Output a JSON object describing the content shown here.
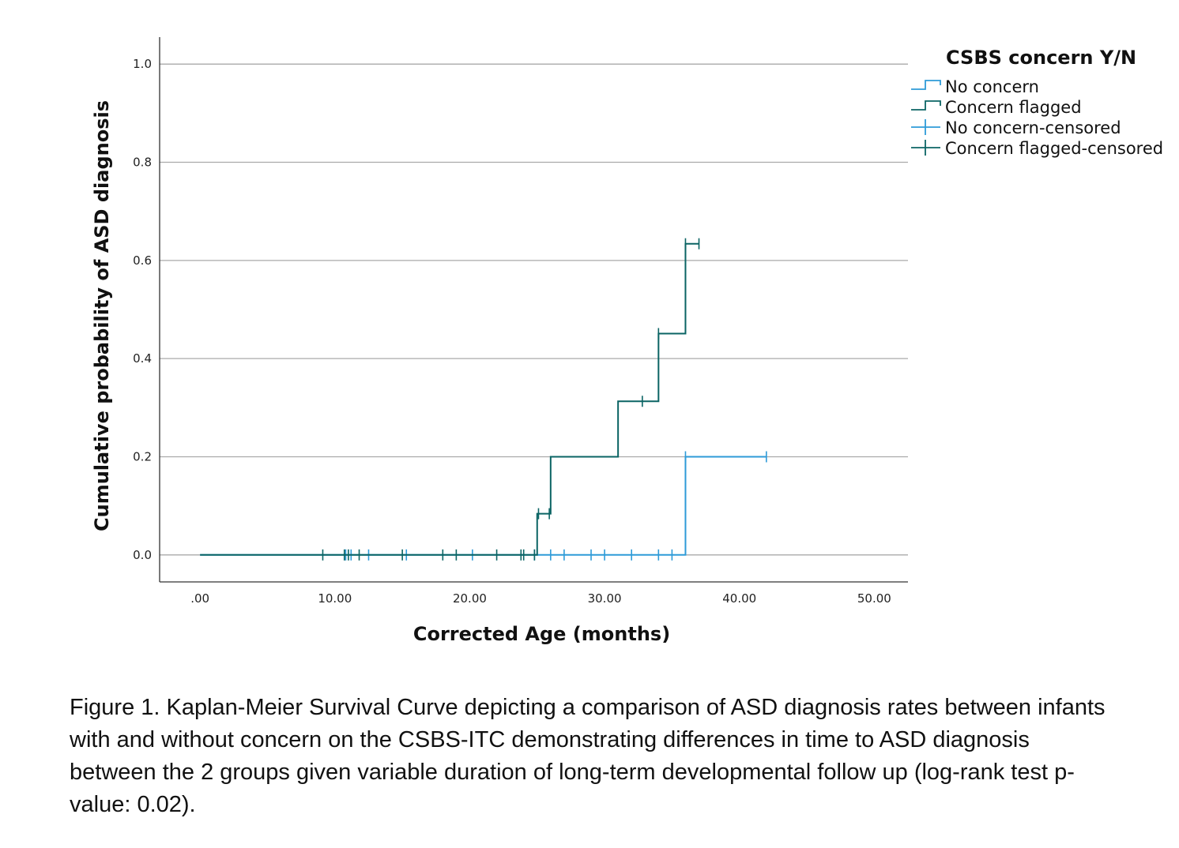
{
  "colors": {
    "no_concern": "#2E9BD8",
    "concern_flagged": "#0B6464",
    "grid": "#AAAAAA",
    "axis": "#333333"
  },
  "chart_data": {
    "type": "line",
    "subtype": "kaplan-meier-step",
    "xlabel": "Corrected Age (months)",
    "ylabel": "Cumulative probability of ASD diagnosis",
    "xlim": [
      -3,
      52.5
    ],
    "ylim": [
      -0.055,
      1.055
    ],
    "xticks": [
      0,
      10,
      20,
      30,
      40,
      50
    ],
    "xtick_labels": [
      ".00",
      "10.00",
      "20.00",
      "30.00",
      "40.00",
      "50.00"
    ],
    "yticks": [
      0,
      0.2,
      0.4,
      0.6,
      0.8,
      1.0
    ],
    "ytick_labels": [
      "0.0",
      "0.2",
      "0.4",
      "0.6",
      "0.8",
      "1.0"
    ],
    "grid": "horizontal",
    "legend": {
      "title": "CSBS concern Y/N",
      "position": "top-right outside",
      "entries": [
        "No concern",
        "Concern flagged",
        "No concern-censored",
        "Concern flagged-censored"
      ]
    },
    "series": [
      {
        "name": "No concern",
        "color_key": "no_concern",
        "steps": [
          [
            0,
            0
          ],
          [
            36,
            0
          ],
          [
            36,
            0.2
          ],
          [
            42,
            0.2
          ]
        ],
        "censored": [
          [
            10.8,
            0
          ],
          [
            11.2,
            0
          ],
          [
            12.5,
            0
          ],
          [
            15.3,
            0
          ],
          [
            20.2,
            0
          ],
          [
            24.8,
            0
          ],
          [
            26,
            0
          ],
          [
            27,
            0
          ],
          [
            29,
            0
          ],
          [
            30,
            0
          ],
          [
            32,
            0
          ],
          [
            34,
            0
          ],
          [
            35,
            0
          ],
          [
            36,
            0.2
          ],
          [
            42,
            0.2
          ]
        ]
      },
      {
        "name": "Concern flagged",
        "color_key": "concern_flagged",
        "steps": [
          [
            0,
            0
          ],
          [
            25,
            0
          ],
          [
            25,
            0.084
          ],
          [
            26,
            0.084
          ],
          [
            26,
            0.2
          ],
          [
            31,
            0.2
          ],
          [
            31,
            0.313
          ],
          [
            34,
            0.313
          ],
          [
            34,
            0.451
          ],
          [
            36,
            0.451
          ],
          [
            36,
            0.634
          ],
          [
            37,
            0.634
          ]
        ],
        "censored": [
          [
            9.1,
            0
          ],
          [
            10.7,
            0
          ],
          [
            11.0,
            0
          ],
          [
            11.8,
            0
          ],
          [
            15.0,
            0
          ],
          [
            18.0,
            0
          ],
          [
            19.0,
            0
          ],
          [
            22.0,
            0
          ],
          [
            23.8,
            0
          ],
          [
            24.0,
            0
          ],
          [
            24.8,
            0
          ],
          [
            25.1,
            0.084
          ],
          [
            25.9,
            0.084
          ],
          [
            32.8,
            0.313
          ],
          [
            34.0,
            0.451
          ],
          [
            36.0,
            0.634
          ],
          [
            37.0,
            0.634
          ]
        ]
      }
    ]
  },
  "caption": "Figure 1. Kaplan-Meier Survival Curve depicting a comparison of ASD diagnosis rates between infants with and without concern on the CSBS-ITC demonstrating differences in time to ASD diagnosis between the 2 groups given variable duration of long-term developmental follow up (log-rank test p-value: 0.02)."
}
